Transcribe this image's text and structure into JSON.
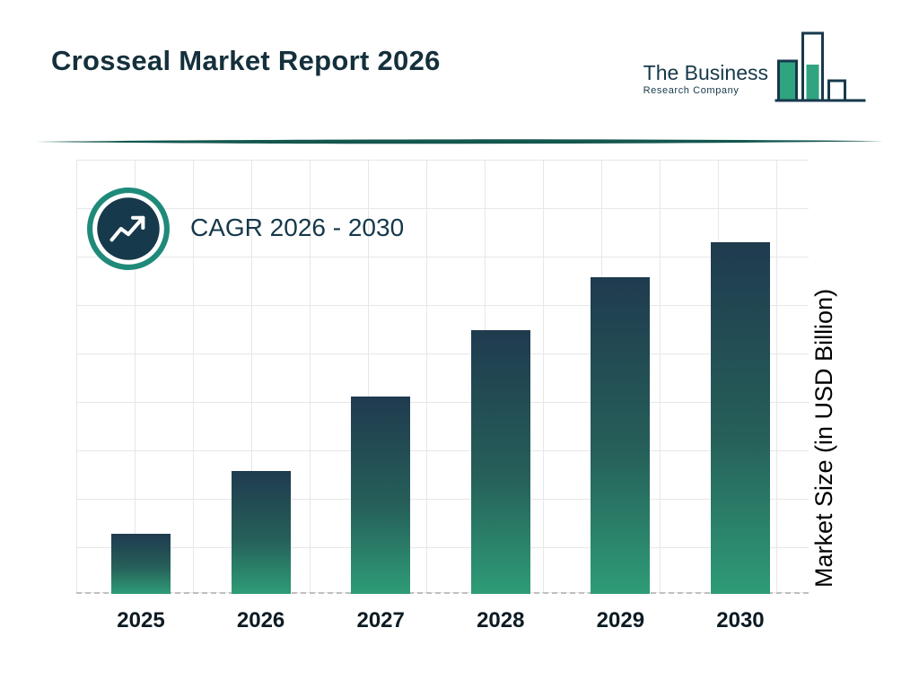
{
  "header": {
    "title": "Crosseal Market Report 2026",
    "logo": {
      "line1": "The Business",
      "line2": "Research Company"
    }
  },
  "annotation": {
    "cagr_label": "CAGR 2026 - 2030"
  },
  "chart_data": {
    "type": "bar",
    "title": "Crosseal Market Report 2026",
    "categories": [
      "2025",
      "2026",
      "2027",
      "2028",
      "2029",
      "2030"
    ],
    "values": [
      17,
      35,
      56,
      75,
      90,
      100
    ],
    "xlabel": "",
    "ylabel": "Market Size (in USD Billion)",
    "ylim": [
      0,
      100
    ],
    "grid": true,
    "legend": "none",
    "annotation": "CAGR 2026 - 2030",
    "bar_color_top": "#1f3b4f",
    "bar_color_bottom": "#2e9c77"
  },
  "colors": {
    "dark_navy": "#17394c",
    "green": "#2fa47f",
    "ring_teal": "#1f8a7a",
    "divider_teal": "#14574f",
    "grid_line": "#e7e7e7"
  }
}
